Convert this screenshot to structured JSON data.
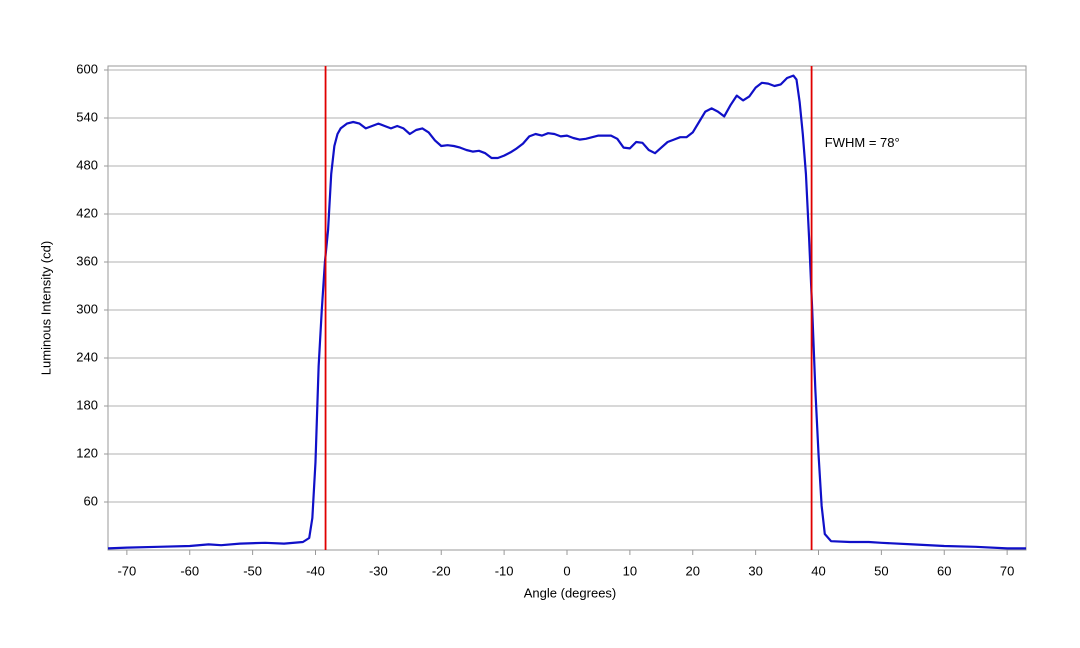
{
  "chart_data": {
    "type": "line",
    "xlabel": "Angle (degrees)",
    "ylabel": "Luminous Intensity (cd)",
    "annotation": "FWHM = 78°",
    "annotation_x": 41,
    "annotation_y": 508,
    "vlines": [
      -38.4,
      38.9
    ],
    "vline_color": "#e00000",
    "xlim": [
      -73,
      73
    ],
    "ylim": [
      0,
      605
    ],
    "xticks": [
      -70,
      -60,
      -50,
      -40,
      -30,
      -20,
      -10,
      0,
      10,
      20,
      30,
      40,
      50,
      60,
      70
    ],
    "yticks": [
      60,
      120,
      180,
      240,
      300,
      360,
      420,
      480,
      540,
      600
    ],
    "grid": true,
    "series": [
      {
        "color": "#1010c8",
        "x": [
          -73,
          -70,
          -65,
          -60,
          -57,
          -55,
          -52,
          -48,
          -45,
          -42,
          -41,
          -40.5,
          -40,
          -39.5,
          -39,
          -38.5,
          -38,
          -37.5,
          -37,
          -36.5,
          -36,
          -35,
          -34,
          -33,
          -32,
          -31,
          -30,
          -29,
          -28,
          -27,
          -26,
          -25,
          -24,
          -23,
          -22,
          -21,
          -20,
          -19,
          -18,
          -17,
          -16,
          -15,
          -14,
          -13,
          -12,
          -11,
          -10,
          -9,
          -8,
          -7,
          -6,
          -5,
          -4,
          -3,
          -2,
          -1,
          0,
          1,
          2,
          3,
          4,
          5,
          6,
          7,
          8,
          9,
          10,
          11,
          12,
          13,
          14,
          15,
          16,
          17,
          18,
          19,
          20,
          21,
          22,
          23,
          24,
          25,
          26,
          27,
          28,
          29,
          30,
          31,
          32,
          33,
          34,
          35,
          36,
          36.5,
          37,
          37.5,
          38,
          38.5,
          39,
          39.5,
          40,
          40.5,
          41,
          42,
          45,
          48,
          50,
          55,
          60,
          65,
          70,
          73
        ],
        "values": [
          2,
          3,
          4,
          5,
          7,
          6,
          8,
          9,
          8,
          10,
          15,
          40,
          110,
          230,
          300,
          360,
          400,
          470,
          505,
          520,
          527,
          533,
          535,
          533,
          527,
          530,
          533,
          530,
          527,
          530,
          527,
          520,
          525,
          527,
          522,
          512,
          505,
          506,
          505,
          503,
          500,
          498,
          499,
          496,
          490,
          490,
          493,
          497,
          502,
          508,
          517,
          520,
          518,
          521,
          520,
          517,
          518,
          515,
          513,
          514,
          516,
          518,
          518,
          518,
          514,
          503,
          502,
          510,
          509,
          500,
          496,
          503,
          510,
          513,
          516,
          516,
          522,
          535,
          548,
          552,
          548,
          542,
          556,
          568,
          562,
          567,
          578,
          584,
          583,
          580,
          582,
          590,
          593,
          588,
          560,
          520,
          470,
          390,
          300,
          200,
          120,
          55,
          20,
          11,
          10,
          10,
          9,
          7,
          5,
          4,
          2,
          2
        ]
      }
    ]
  }
}
